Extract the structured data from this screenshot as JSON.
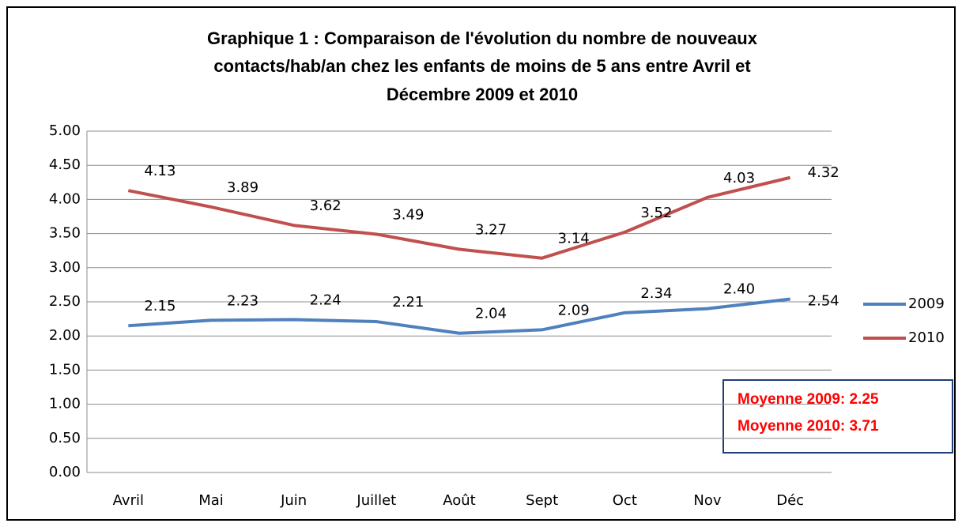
{
  "chart_data": {
    "type": "line",
    "title": [
      "Graphique 1 : Comparaison de l'évolution du nombre de nouveaux",
      "contacts/hab/an chez les enfants de moins de 5 ans entre Avril et",
      "Décembre 2009 et 2010"
    ],
    "categories": [
      "Avril",
      "Mai",
      "Juin",
      "Juillet",
      "Août",
      "Sept",
      "Oct",
      "Nov",
      "Déc"
    ],
    "series": [
      {
        "name": "2009",
        "color": "#4f81bd",
        "values": [
          2.15,
          2.23,
          2.24,
          2.21,
          2.04,
          2.09,
          2.34,
          2.4,
          2.54
        ],
        "value_labels": [
          "2.15",
          "2.23",
          "2.24",
          "2.21",
          "2.04",
          "2.09",
          "2.34",
          "2.40",
          "2.54"
        ]
      },
      {
        "name": "2010",
        "color": "#c0504d",
        "values": [
          4.13,
          3.89,
          3.62,
          3.49,
          3.27,
          3.14,
          3.52,
          4.03,
          4.32
        ],
        "value_labels": [
          "4.13",
          "3.89",
          "3.62",
          "3.49",
          "3.27",
          "3.14",
          "3.52",
          "4.03",
          "4.32"
        ]
      }
    ],
    "ylim": [
      0,
      5
    ],
    "yticks": [
      {
        "value": 0,
        "label": "0.00"
      },
      {
        "value": 0.5,
        "label": "0.50"
      },
      {
        "value": 1,
        "label": "1.00"
      },
      {
        "value": 1.5,
        "label": "1.50"
      },
      {
        "value": 2,
        "label": "2.00"
      },
      {
        "value": 2.5,
        "label": "2.50"
      },
      {
        "value": 3,
        "label": "3.00"
      },
      {
        "value": 3.5,
        "label": "3.50"
      },
      {
        "value": 4,
        "label": "4.00"
      },
      {
        "value": 4.5,
        "label": "4.50"
      },
      {
        "value": 5,
        "label": "5.00"
      }
    ],
    "grid": true,
    "legend": "right",
    "annotations": [
      "Moyenne 2009: 2.25",
      "Moyenne 2010: 3.71"
    ]
  }
}
